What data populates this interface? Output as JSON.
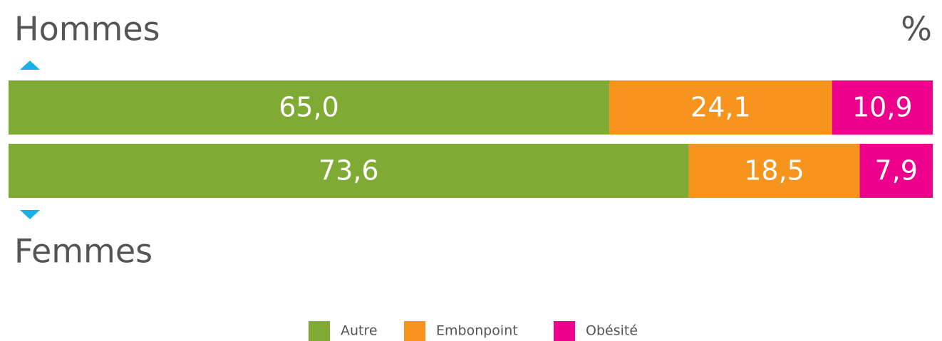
{
  "chart_data": {
    "type": "stacked_bar_horizontal",
    "unit_label": "%",
    "categories": [
      "Hommes",
      "Femmes"
    ],
    "xlim": [
      0,
      100
    ],
    "series": [
      {
        "name": "Autre",
        "color": "#7fab35",
        "values": [
          65.0,
          73.6
        ],
        "value_labels": [
          "65,0",
          "73,6"
        ]
      },
      {
        "name": "Embonpoint",
        "color": "#f7941d",
        "values": [
          24.1,
          18.5
        ],
        "value_labels": [
          "24,1",
          "18,5"
        ]
      },
      {
        "name": "Obésité",
        "color": "#ec008c",
        "values": [
          10.9,
          7.9
        ],
        "value_labels": [
          "10,9",
          "7,9"
        ]
      }
    ]
  }
}
